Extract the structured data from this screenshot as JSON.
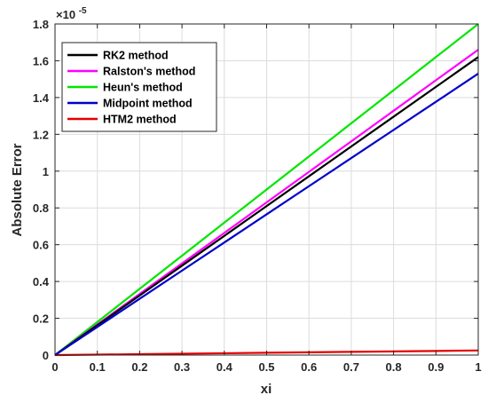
{
  "chart_data": {
    "type": "line",
    "xlabel": "xi",
    "ylabel": "Absolute Error",
    "y_multiplier_label": "×10",
    "y_multiplier_exp": "-5",
    "xlim": [
      0,
      1
    ],
    "ylim": [
      0,
      1.8
    ],
    "x_ticks": [
      "0",
      "0.1",
      "0.2",
      "0.3",
      "0.4",
      "0.5",
      "0.6",
      "0.7",
      "0.8",
      "0.9",
      "1"
    ],
    "y_ticks": [
      "0",
      "0.2",
      "0.4",
      "0.6",
      "0.8",
      "1",
      "1.2",
      "1.4",
      "1.6",
      "1.8"
    ],
    "grid": true,
    "legend_position": "top-left",
    "x": [
      0,
      0.1,
      0.2,
      0.3,
      0.4,
      0.5,
      0.6,
      0.7,
      0.8,
      0.9,
      1
    ],
    "series": [
      {
        "name": "RK2 method",
        "color": "#000000",
        "values": [
          0,
          0.162,
          0.324,
          0.486,
          0.648,
          0.81,
          0.972,
          1.134,
          1.296,
          1.458,
          1.62
        ]
      },
      {
        "name": "Ralston's method",
        "color": "#ff00ff",
        "values": [
          0,
          0.166,
          0.332,
          0.498,
          0.664,
          0.83,
          0.996,
          1.162,
          1.328,
          1.494,
          1.66
        ]
      },
      {
        "name": "Heun's method",
        "color": "#00e600",
        "values": [
          0,
          0.18,
          0.36,
          0.54,
          0.72,
          0.9,
          1.08,
          1.26,
          1.44,
          1.62,
          1.8
        ]
      },
      {
        "name": "Midpoint method",
        "color": "#0000cc",
        "values": [
          0,
          0.153,
          0.306,
          0.459,
          0.612,
          0.765,
          0.918,
          1.071,
          1.224,
          1.377,
          1.53
        ]
      },
      {
        "name": "HTM2 method",
        "color": "#e60000",
        "values": [
          0,
          0.0025,
          0.005,
          0.0075,
          0.01,
          0.0125,
          0.015,
          0.0175,
          0.02,
          0.0225,
          0.025
        ]
      }
    ]
  }
}
